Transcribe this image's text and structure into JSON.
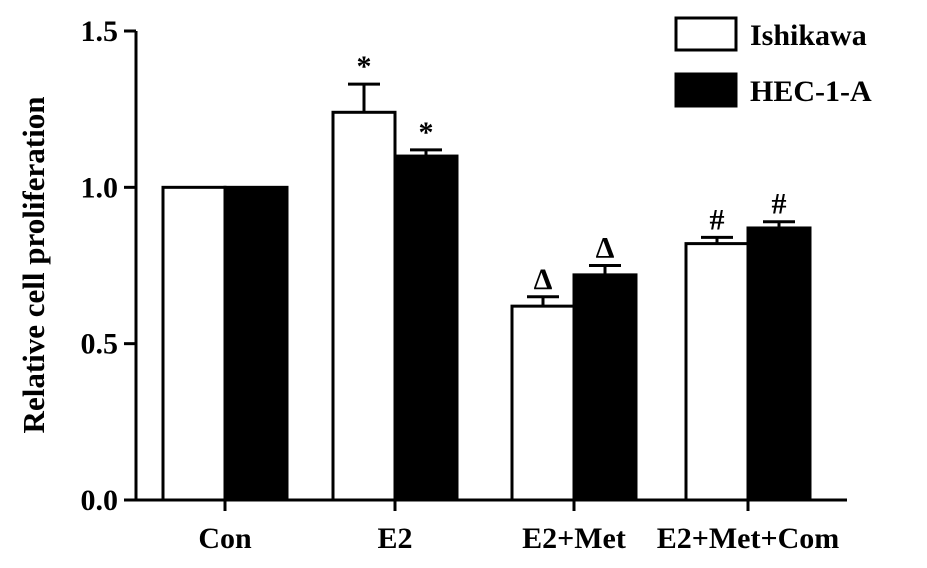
{
  "chart_data": {
    "type": "bar",
    "categories": [
      "Con",
      "E2",
      "E2+Met",
      "E2+Met+Com"
    ],
    "series": [
      {
        "name": "Ishikawa",
        "fill": "#ffffff",
        "values": [
          1.0,
          1.24,
          0.62,
          0.82
        ],
        "errors": [
          0.0,
          0.09,
          0.03,
          0.02
        ],
        "annotations": [
          "",
          "*",
          "Δ",
          "#"
        ]
      },
      {
        "name": "HEC-1-A",
        "fill": "#000000",
        "values": [
          1.0,
          1.1,
          0.72,
          0.87
        ],
        "errors": [
          0.0,
          0.02,
          0.03,
          0.02
        ],
        "annotations": [
          "",
          "*",
          "Δ",
          "#"
        ]
      }
    ],
    "xlabel": "",
    "ylabel": "Relative cell proliferation",
    "ylim": [
      0,
      1.5
    ],
    "yticks": [
      "0.0",
      "0.5",
      "1.0",
      "1.5"
    ],
    "legend_position": "top-right",
    "grid": false
  }
}
